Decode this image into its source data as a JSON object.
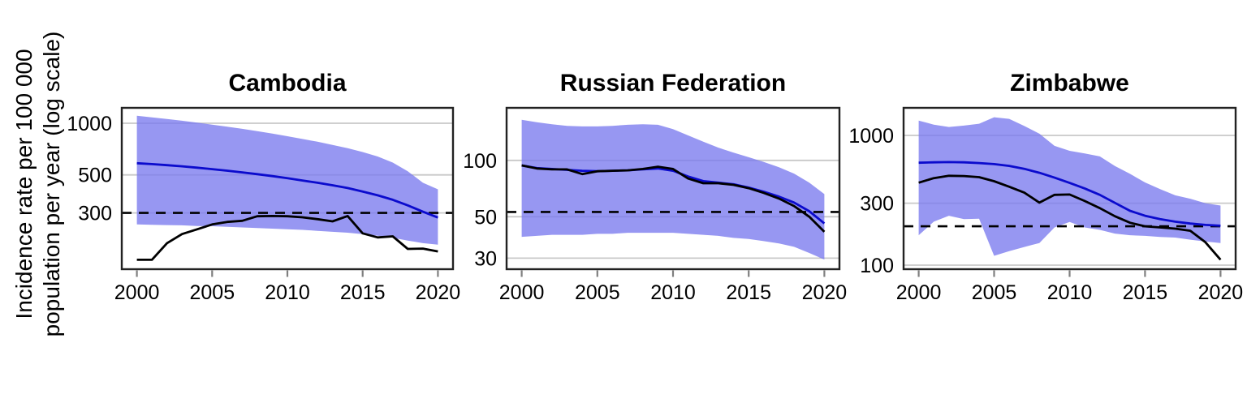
{
  "figure": {
    "background": "#ffffff",
    "y_axis_label_line1": "Incidence rate per 100 000",
    "y_axis_label_line2": "population per year (log scale)"
  },
  "colors": {
    "band": "#7a7aee",
    "estimate_line": "#0b0bcd",
    "observed_line": "#000000",
    "dashed_reference": "#000000",
    "gridline": "#c8c8c8",
    "panel_border": "#222222",
    "tick_mark": "#7f7f7f",
    "tick_text": "#000000"
  },
  "chart_data": [
    {
      "type": "line",
      "title": "Cambodia",
      "ylabel": "Incidence rate per 100 000 population per year (log scale)",
      "x_ticks": [
        2000,
        2005,
        2010,
        2015,
        2020
      ],
      "y_ticks": [
        1000,
        500,
        300
      ],
      "ylim": [
        141,
        1230
      ],
      "xlim": [
        2000,
        2020
      ],
      "grid": "horizontal-only",
      "legend": "none",
      "dashed_reference_value": 300,
      "years": [
        2000,
        2001,
        2002,
        2003,
        2004,
        2005,
        2006,
        2007,
        2008,
        2009,
        2010,
        2011,
        2012,
        2013,
        2014,
        2015,
        2016,
        2017,
        2018,
        2019,
        2020
      ],
      "series": [
        {
          "name": "blue_estimate_line",
          "values": [
            585,
            578,
            570,
            561,
            551,
            540,
            529,
            517,
            505,
            492,
            478,
            464,
            450,
            435,
            419,
            400,
            380,
            358,
            332,
            305,
            282
          ]
        },
        {
          "name": "black_observed_line",
          "values": [
            160,
            160,
            200,
            226,
            241,
            257,
            266,
            270,
            287,
            288,
            287,
            283,
            276,
            268,
            288,
            228,
            216,
            219,
            185,
            186,
            179
          ]
        }
      ],
      "uncertainty_band": {
        "upper": [
          1105,
          1082,
          1058,
          1034,
          1008,
          982,
          955,
          928,
          900,
          870,
          840,
          810,
          780,
          748,
          715,
          680,
          640,
          590,
          525,
          450,
          412
        ],
        "lower": [
          257,
          256,
          255,
          254,
          252,
          251,
          249,
          247,
          245,
          243,
          241,
          239,
          236,
          233,
          230,
          226,
          221,
          215,
          207,
          200,
          196
        ]
      }
    },
    {
      "type": "line",
      "title": "Russian Federation",
      "ylabel": "Incidence rate per 100 000 population per year (log scale)",
      "x_ticks": [
        2000,
        2005,
        2010,
        2015,
        2020
      ],
      "y_ticks": [
        100,
        50,
        30
      ],
      "ylim": [
        26.2,
        191
      ],
      "xlim": [
        2000,
        2020
      ],
      "grid": "horizontal-only",
      "legend": "none",
      "dashed_reference_value": 53,
      "years": [
        2000,
        2001,
        2002,
        2003,
        2004,
        2005,
        2006,
        2007,
        2008,
        2009,
        2010,
        2011,
        2012,
        2013,
        2014,
        2015,
        2016,
        2017,
        2018,
        2019,
        2020
      ],
      "series": [
        {
          "name": "blue_estimate_line",
          "values": [
            94,
            91,
            90,
            89,
            88,
            87.5,
            88,
            88.5,
            89.5,
            90.5,
            88,
            82,
            77.5,
            76,
            74.5,
            71.5,
            68,
            64,
            59.5,
            53.5,
            46
          ]
        },
        {
          "name": "black_observed_line",
          "values": [
            94,
            90.5,
            89.5,
            89.5,
            84.5,
            87.5,
            88,
            88.5,
            90,
            92.5,
            90,
            80,
            75.5,
            75.5,
            74,
            71,
            67,
            62.5,
            57,
            50,
            41.5
          ]
        }
      ],
      "uncertainty_band": {
        "upper": [
          165,
          160,
          156,
          153,
          152,
          152,
          153,
          155,
          156,
          155,
          147,
          136,
          126,
          117,
          110,
          104,
          98,
          92,
          85,
          76,
          66
        ],
        "lower": [
          39,
          39.5,
          40,
          40,
          40,
          40.5,
          40.5,
          41,
          41,
          41,
          41,
          40.5,
          40,
          39.5,
          38.5,
          38,
          37,
          36,
          34.5,
          32,
          29.5
        ]
      }
    },
    {
      "type": "line",
      "title": "Zimbabwe",
      "ylabel": "Incidence rate per 100 000 population per year (log scale)",
      "x_ticks": [
        2000,
        2005,
        2010,
        2015,
        2020
      ],
      "y_ticks": [
        1000,
        300,
        100
      ],
      "ylim": [
        93,
        1630
      ],
      "xlim": [
        2000,
        2020
      ],
      "grid": "horizontal-only",
      "legend": "none",
      "dashed_reference_value": 199,
      "years": [
        2000,
        2001,
        2002,
        2003,
        2004,
        2005,
        2006,
        2007,
        2008,
        2009,
        2010,
        2011,
        2012,
        2013,
        2014,
        2015,
        2016,
        2017,
        2018,
        2019,
        2020
      ],
      "series": [
        {
          "name": "blue_estimate_line",
          "values": [
            615,
            620,
            622,
            620,
            612,
            600,
            582,
            552,
            515,
            472,
            430,
            390,
            348,
            302,
            262,
            240,
            226,
            216,
            209,
            204,
            201
          ]
        },
        {
          "name": "black_observed_line",
          "values": [
            432,
            468,
            488,
            486,
            476,
            443,
            402,
            362,
            303,
            348,
            350,
            312,
            275,
            238,
            212,
            199,
            195,
            191,
            184,
            150,
            110
          ]
        }
      ],
      "uncertainty_band": {
        "upper": [
          1300,
          1210,
          1160,
          1190,
          1230,
          1380,
          1340,
          1180,
          1030,
          830,
          760,
          726,
          688,
          580,
          505,
          434,
          385,
          345,
          325,
          300,
          288
        ],
        "lower": [
          170,
          216,
          240,
          226,
          228,
          118,
          128,
          138,
          148,
          195,
          215,
          195,
          187,
          175,
          170,
          168,
          165,
          163,
          157,
          152,
          148
        ]
      }
    }
  ]
}
